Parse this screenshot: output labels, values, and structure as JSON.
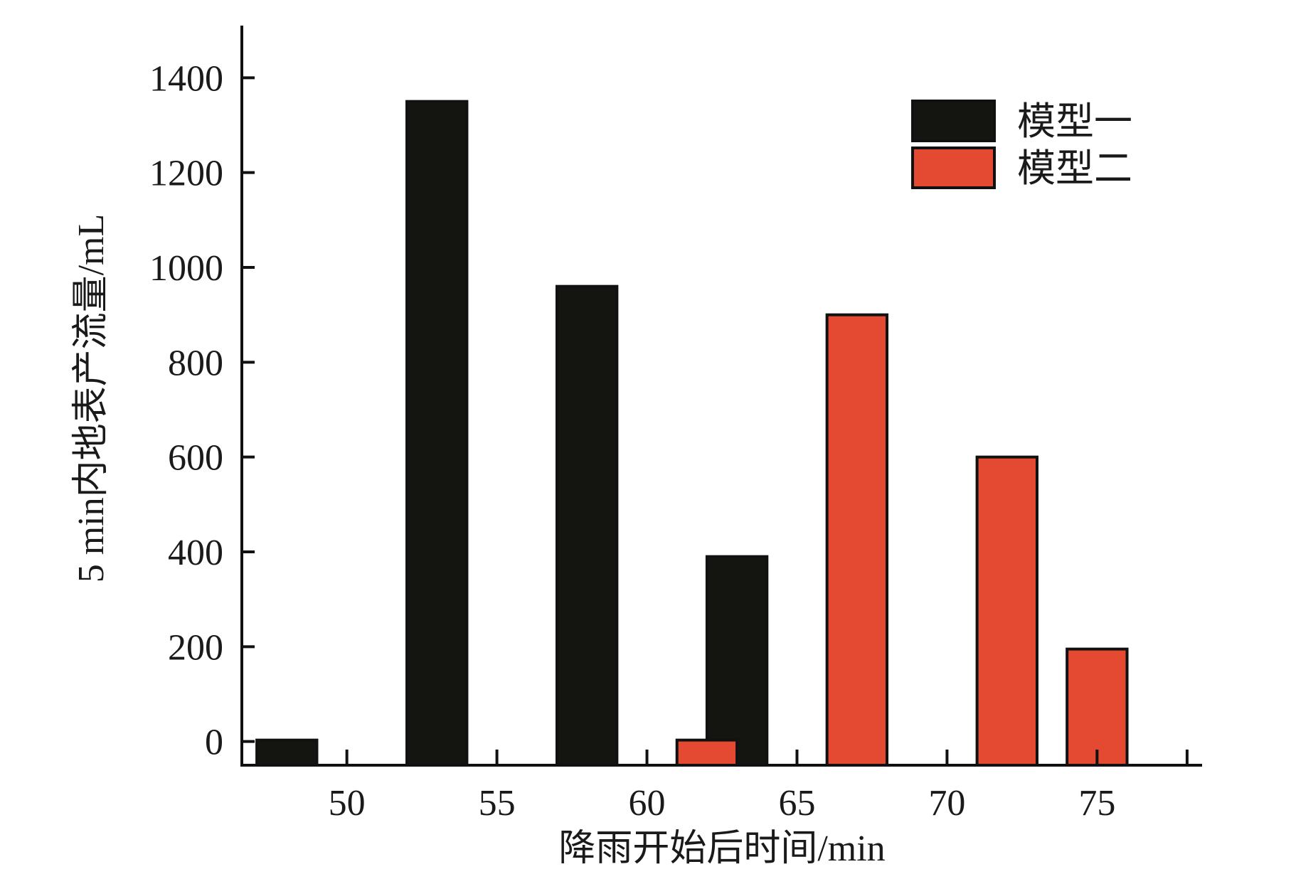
{
  "chart_data": {
    "type": "bar",
    "title": "",
    "xlabel": "降雨开始后时间/min",
    "ylabel": "5 min内地表产流量/mL",
    "xlim": [
      46.5,
      78.5
    ],
    "ylim": [
      -50,
      1510
    ],
    "x_ticks": [
      50,
      55,
      60,
      65,
      70,
      75
    ],
    "y_ticks": [
      0,
      200,
      400,
      600,
      800,
      1000,
      1200,
      1400
    ],
    "y_tick_labels": [
      "0",
      "200",
      "400",
      "600",
      "800",
      "1000",
      "1200",
      "1400"
    ],
    "legend_position": "top-right",
    "bar_width": 2,
    "series": [
      {
        "name": "模型一",
        "color": "#141410",
        "points": [
          {
            "x": 48,
            "y": 0
          },
          {
            "x": 53,
            "y": 1350
          },
          {
            "x": 58,
            "y": 960
          },
          {
            "x": 63,
            "y": 390
          }
        ]
      },
      {
        "name": "模型二",
        "color": "#e44a31",
        "points": [
          {
            "x": 62,
            "y": 0
          },
          {
            "x": 67,
            "y": 900
          },
          {
            "x": 72,
            "y": 600
          },
          {
            "x": 75,
            "y": 195
          }
        ]
      }
    ]
  }
}
